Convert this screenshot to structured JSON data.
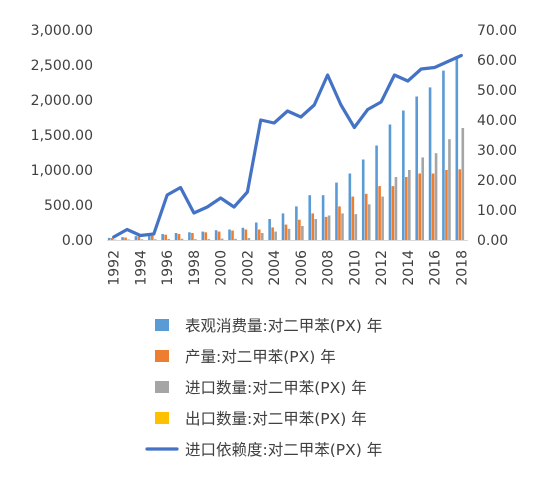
{
  "chart_data": {
    "type": "bar",
    "title": "",
    "xlabel": "",
    "ylabel": "",
    "ylabel_right": "",
    "x": [
      1992,
      1993,
      1994,
      1995,
      1996,
      1997,
      1998,
      1999,
      2000,
      2001,
      2002,
      2003,
      2004,
      2005,
      2006,
      2007,
      2008,
      2009,
      2010,
      2011,
      2012,
      2013,
      2014,
      2015,
      2016,
      2017,
      2018
    ],
    "x_tick_labels": [
      "1992",
      "1994",
      "1996",
      "1998",
      "2000",
      "2002",
      "2004",
      "2006",
      "2008",
      "2010",
      "2012",
      "2014",
      "2016",
      "2018"
    ],
    "ylim": [
      0,
      3000
    ],
    "y_ticks": [
      "0.00",
      "500.00",
      "1,000.00",
      "1,500.00",
      "2,000.00",
      "2,500.00",
      "3,000.00"
    ],
    "y2lim": [
      0,
      70
    ],
    "y2_ticks": [
      "0.00",
      "10.00",
      "20.00",
      "30.00",
      "40.00",
      "50.00",
      "60.00",
      "70.00"
    ],
    "grid": false,
    "legend_position": "bottom",
    "series": [
      {
        "name": "表观消费量:对二甲苯(PX) 年",
        "type": "bar",
        "axis": "left",
        "color": "#5b9bd5",
        "values": [
          30,
          40,
          55,
          65,
          85,
          100,
          110,
          120,
          140,
          150,
          175,
          250,
          300,
          380,
          480,
          640,
          640,
          820,
          950,
          1150,
          1350,
          1650,
          1850,
          2050,
          2180,
          2420,
          2600
        ]
      },
      {
        "name": "产量:对二甲苯(PX) 年",
        "type": "bar",
        "axis": "left",
        "color": "#ed7d31",
        "values": [
          28,
          35,
          50,
          60,
          75,
          85,
          100,
          110,
          120,
          135,
          150,
          150,
          180,
          220,
          290,
          380,
          330,
          480,
          620,
          660,
          770,
          770,
          900,
          950,
          950,
          1000,
          1010
        ]
      },
      {
        "name": "进口数量:对二甲苯(PX) 年",
        "type": "bar",
        "axis": "left",
        "color": "#a5a5a5",
        "values": [
          5,
          8,
          10,
          10,
          15,
          18,
          12,
          13,
          20,
          17,
          28,
          100,
          120,
          160,
          200,
          300,
          350,
          380,
          370,
          510,
          620,
          900,
          1000,
          1180,
          1240,
          1440,
          1600
        ]
      },
      {
        "name": "出口数量:对二甲苯(PX) 年",
        "type": "bar",
        "axis": "left",
        "color": "#ffc000",
        "values": [
          0,
          0,
          0,
          0,
          0,
          0,
          0,
          0,
          0,
          0,
          0,
          0,
          0,
          0,
          0,
          0,
          0,
          0,
          0,
          0,
          0,
          0,
          0,
          0,
          0,
          0,
          0
        ]
      },
      {
        "name": "进口依赖度:对二甲苯(PX) 年",
        "type": "line",
        "axis": "right",
        "color": "#4472c4",
        "values": [
          1.0,
          3.5,
          1.5,
          2.0,
          15.0,
          17.5,
          9.0,
          11.0,
          14.0,
          11.0,
          16.0,
          40.0,
          39.0,
          43.0,
          41.0,
          45.0,
          55.0,
          45.0,
          37.5,
          43.5,
          46.0,
          55.0,
          53.0,
          57.0,
          57.5,
          59.5,
          61.5
        ]
      }
    ]
  },
  "colors": {
    "axis_text": "#404040",
    "axis_line": "#d9d9d9",
    "background": "#ffffff"
  }
}
